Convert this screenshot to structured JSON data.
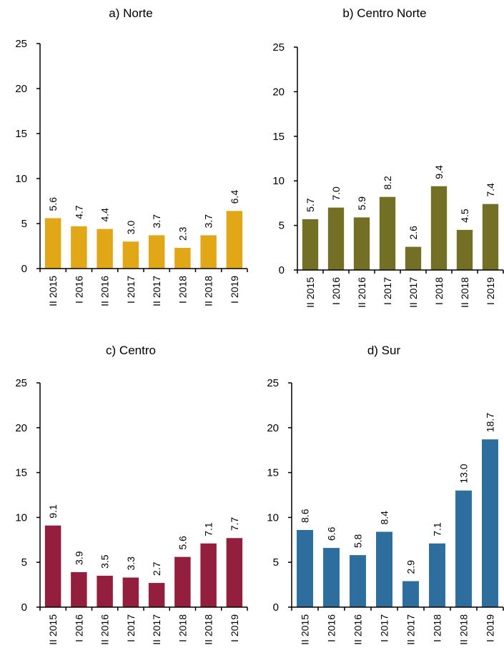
{
  "chart_data": [
    {
      "type": "bar",
      "title": "a) Norte",
      "categories": [
        "II 2015",
        "I 2016",
        "II 2016",
        "I 2017",
        "II 2017",
        "I 2018",
        "II 2018",
        "I 2019"
      ],
      "values": [
        5.6,
        4.7,
        4.4,
        3.0,
        3.7,
        2.3,
        3.7,
        6.4
      ],
      "ylim": [
        0,
        25
      ],
      "yticks": [
        0,
        5,
        10,
        15,
        20,
        25
      ],
      "color": "#E2A716",
      "grid": false
    },
    {
      "type": "bar",
      "title": "b) Centro Norte",
      "categories": [
        "II 2015",
        "I 2016",
        "II 2016",
        "I 2017",
        "II 2017",
        "I 2018",
        "II 2018",
        "I 2019"
      ],
      "values": [
        5.7,
        7.0,
        5.9,
        8.2,
        2.6,
        9.4,
        4.5,
        7.4
      ],
      "ylim": [
        0,
        25
      ],
      "yticks": [
        0,
        5,
        10,
        15,
        20,
        25
      ],
      "color": "#736F25",
      "grid": false
    },
    {
      "type": "bar",
      "title": "c) Centro",
      "categories": [
        "II 2015",
        "I 2016",
        "II 2016",
        "I 2017",
        "II 2017",
        "I 2018",
        "II 2018",
        "I 2019"
      ],
      "values": [
        9.1,
        3.9,
        3.5,
        3.3,
        2.7,
        5.6,
        7.1,
        7.7
      ],
      "ylim": [
        0,
        25
      ],
      "yticks": [
        0,
        5,
        10,
        15,
        20,
        25
      ],
      "color": "#931E3E",
      "grid": false
    },
    {
      "type": "bar",
      "title": "d) Sur",
      "categories": [
        "II 2015",
        "I 2016",
        "II 2016",
        "I 2017",
        "II 2017",
        "I 2018",
        "II 2018",
        "I 2019"
      ],
      "values": [
        8.6,
        6.6,
        5.8,
        8.4,
        2.9,
        7.1,
        13.0,
        18.7
      ],
      "ylim": [
        0,
        25
      ],
      "yticks": [
        0,
        5,
        10,
        15,
        20,
        25
      ],
      "color": "#2D6E9E",
      "grid": false
    }
  ]
}
